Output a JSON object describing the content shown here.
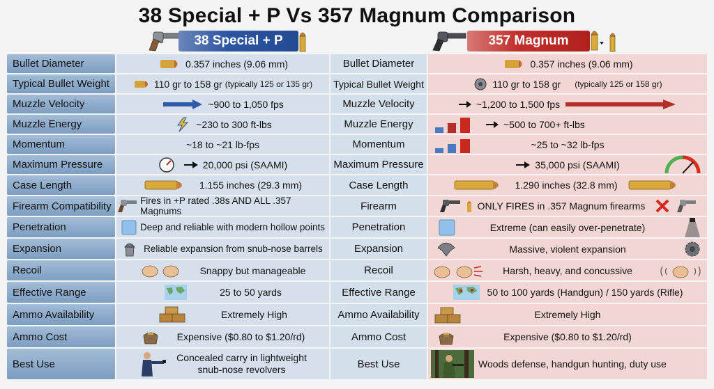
{
  "title": "38 Special + P Vs 357 Magnum Comparison",
  "headers": {
    "left": "38 Special + P",
    "right": "357 Magnum"
  },
  "rows": [
    {
      "label": "Bullet Diameter",
      "v1": "0.357 inches (9.06 mm)",
      "label2": "Bullet Diameter",
      "v2": "0.357 inches (9.06 mm)"
    },
    {
      "label": "Typical Bullet Weight",
      "v1": "110 gr to 158 gr",
      "v1_note": "(typically 125 or 135 gr)",
      "label2": "Typical Bullet Weight",
      "v2": "110 gr to 158 gr",
      "v2_note": "(typically 125 or 158 gr)"
    },
    {
      "label": "Muzzle Velocity",
      "v1": "~900 to 1,050 fps",
      "label2": "Muzzle Velocity",
      "v2": "~1,200 to 1,500 fps"
    },
    {
      "label": "Muzzle Energy",
      "v1": "~230 to 300 ft-lbs",
      "label2": "Muzzle Energy",
      "v2": "~500 to 700+ ft-lbs"
    },
    {
      "label": "Momentum",
      "v1": "~18 to ~21 lb-fps",
      "label2": "Momentum",
      "v2": "~25 to ~32 lb-fps"
    },
    {
      "label": "Maximum Pressure",
      "v1": "20,000 psi (SAAMI)",
      "label2": "Maximum Pressure",
      "v2": "35,000 psi (SAAMI)"
    },
    {
      "label": "Case Length",
      "v1": "1.155 inches (29.3 mm)",
      "label2": "Case Length",
      "v2": "1.290 inches (32.8 mm)"
    },
    {
      "label": "Firearm Compatibility",
      "v1": "Fires in +P rated .38s AND ALL .357 Magnums",
      "label2": "Firearm",
      "v2": "ONLY FIRES in .357 Magnum firearms"
    },
    {
      "label": "Penetration",
      "v1": "Deep and reliable with modern hollow points",
      "label2": "Penetration",
      "v2": "Extreme (can easily over-penetrate)"
    },
    {
      "label": "Expansion",
      "v1": "Reliable expansion from snub-nose barrels",
      "label2": "Expansion",
      "v2": "Massive, violent expansion"
    },
    {
      "label": "Recoil",
      "v1": "Snappy but manageable",
      "label2": "Recoil",
      "v2": "Harsh, heavy, and concussive"
    },
    {
      "label": "Effective Range",
      "v1": "25 to 50 yards",
      "label2": "Effective Range",
      "v2": "50 to 100 yards (Handgun) / 150 yards (Rifle)"
    },
    {
      "label": "Ammo Availability",
      "v1": "Extremely High",
      "label2": "Ammo Availability",
      "v2": "Extremely High"
    },
    {
      "label": "Ammo Cost",
      "v1": "Expensive ($0.80 to $1.20/rd)",
      "label2": "Ammo Cost",
      "v2": "Expensive ($0.80 to $1.20/rd)"
    },
    {
      "label": "Best Use",
      "v1_line1": "Concealed carry in lightweight",
      "v1_line2": "snub-nose revolvers",
      "label2": "Best Use",
      "v2": "Woods defense, handgun hunting, duty use"
    }
  ]
}
